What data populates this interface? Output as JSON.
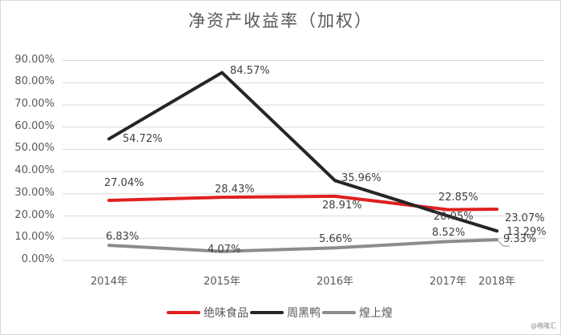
{
  "chart_data": {
    "type": "line",
    "title": "净资产收益率（加权）",
    "xlabel": "",
    "ylabel": "",
    "categories": [
      "2014年",
      "2015年",
      "2016年",
      "2017年",
      "2018年"
    ],
    "series": [
      {
        "name": "绝味食品",
        "color": "#e02020",
        "values": [
          27.04,
          28.43,
          28.91,
          22.85,
          23.07
        ],
        "labels": [
          "27.04%",
          "28.43%",
          "28.91%",
          "22.85%",
          "23.07%"
        ]
      },
      {
        "name": "周黑鸭",
        "color": "#262626",
        "values": [
          54.72,
          84.57,
          35.96,
          20.05,
          13.29
        ],
        "labels": [
          "54.72%",
          "84.57%",
          "35.96%",
          "20.05%",
          "13.29%"
        ]
      },
      {
        "name": "煌上煌",
        "color": "#8c8c8c",
        "values": [
          6.83,
          4.07,
          5.66,
          8.52,
          9.33
        ],
        "labels": [
          "6.83%",
          "4.07%",
          "5.66%",
          "8.52%",
          "9.33%"
        ]
      }
    ],
    "yticks": [
      "0.00%",
      "10.00%",
      "20.00%",
      "30.00%",
      "40.00%",
      "50.00%",
      "60.00%",
      "70.00%",
      "80.00%",
      "90.00%"
    ],
    "ylim": [
      0,
      90
    ],
    "grid": true,
    "legend_position": "bottom"
  },
  "legend": {
    "items": [
      {
        "label": "绝味食品",
        "color": "#e02020"
      },
      {
        "label": "周黑鸭",
        "color": "#262626"
      },
      {
        "label": "煌上煌",
        "color": "#8c8c8c"
      }
    ]
  },
  "credit": "@格隆汇"
}
